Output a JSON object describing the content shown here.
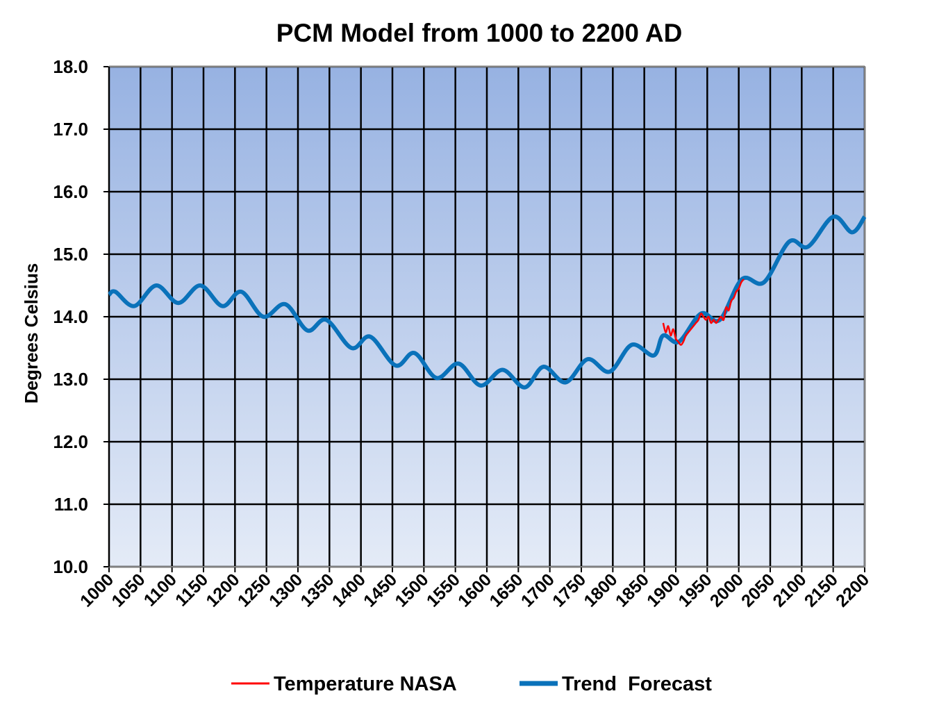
{
  "chart_data": {
    "type": "line",
    "title": "PCM Model from 1000 to 2200 AD",
    "y_label": "Degrees Celsius",
    "xlim": [
      1000,
      2200
    ],
    "xticks": [
      1000,
      1050,
      1100,
      1150,
      1200,
      1250,
      1300,
      1350,
      1400,
      1450,
      1500,
      1550,
      1600,
      1650,
      1700,
      1750,
      1800,
      1850,
      1900,
      1950,
      2000,
      2050,
      2100,
      2150,
      2200
    ],
    "ylim": [
      10,
      18
    ],
    "yticks": [
      {
        "value": 10,
        "label": "10.0"
      },
      {
        "value": 11,
        "label": "11.0"
      },
      {
        "value": 12,
        "label": "12.0"
      },
      {
        "value": 13,
        "label": "13.0"
      },
      {
        "value": 14,
        "label": "14.0"
      },
      {
        "value": 15,
        "label": "15.0"
      },
      {
        "value": 16,
        "label": "16.0"
      },
      {
        "value": 17,
        "label": "17.0"
      },
      {
        "value": 18,
        "label": "18.0"
      }
    ],
    "grid": true,
    "legend": "bottom",
    "series": [
      {
        "name": "Temperature NASA",
        "color": "#ff0000",
        "x": [
          1880,
          1884,
          1888,
          1892,
          1896,
          1900,
          1904,
          1908,
          1912,
          1916,
          1920,
          1924,
          1928,
          1932,
          1936,
          1940,
          1944,
          1948,
          1952,
          1956,
          1960,
          1964,
          1968,
          1972,
          1976,
          1980,
          1984,
          1988,
          1992,
          1996,
          2000,
          2004,
          2008
        ],
        "values": [
          13.9,
          13.75,
          13.85,
          13.7,
          13.8,
          13.65,
          13.6,
          13.55,
          13.6,
          13.7,
          13.75,
          13.8,
          13.85,
          13.9,
          13.95,
          14.05,
          14.0,
          13.95,
          14.0,
          13.9,
          13.95,
          13.9,
          13.95,
          14.0,
          13.95,
          14.15,
          14.1,
          14.25,
          14.3,
          14.4,
          14.45,
          14.55,
          14.6
        ]
      },
      {
        "name": "Trend  Forecast",
        "color": "#0a72ba",
        "x": [
          1000,
          1010,
          1040,
          1075,
          1110,
          1145,
          1180,
          1210,
          1245,
          1280,
          1315,
          1345,
          1385,
          1415,
          1455,
          1485,
          1520,
          1555,
          1590,
          1625,
          1660,
          1690,
          1725,
          1760,
          1795,
          1830,
          1865,
          1880,
          1905,
          1940,
          1970,
          2005,
          2040,
          2080,
          2110,
          2150,
          2180,
          2200
        ],
        "values": [
          14.35,
          14.4,
          14.17,
          14.5,
          14.22,
          14.5,
          14.17,
          14.4,
          14.0,
          14.2,
          13.78,
          13.95,
          13.5,
          13.68,
          13.22,
          13.42,
          13.02,
          13.25,
          12.9,
          13.15,
          12.87,
          13.2,
          12.95,
          13.32,
          13.12,
          13.55,
          13.38,
          13.7,
          13.6,
          14.05,
          13.95,
          14.6,
          14.55,
          15.2,
          15.12,
          15.6,
          15.35,
          15.6
        ]
      }
    ]
  }
}
